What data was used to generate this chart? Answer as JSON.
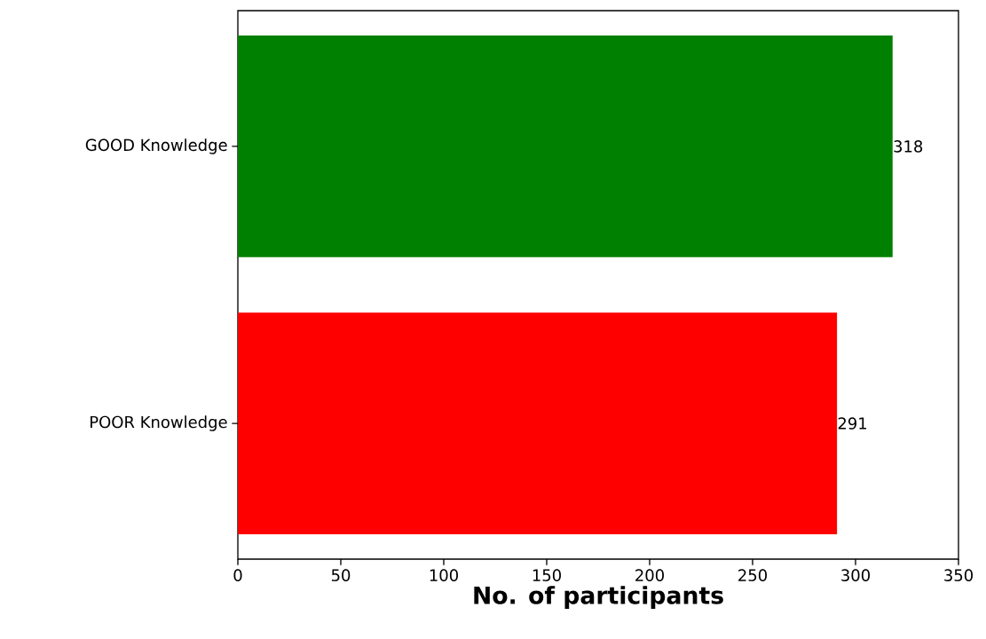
{
  "chart_data": {
    "type": "bar",
    "orientation": "horizontal",
    "categories": [
      "GOOD Knowledge",
      "POOR Knowledge"
    ],
    "values": [
      318,
      291
    ],
    "colors": [
      "#008000",
      "#ff0000"
    ],
    "xlabel": "No. of participants",
    "xlim": [
      0,
      350
    ],
    "xticks": [
      0,
      50,
      100,
      150,
      200,
      250,
      300,
      350
    ],
    "data_labels": true
  }
}
